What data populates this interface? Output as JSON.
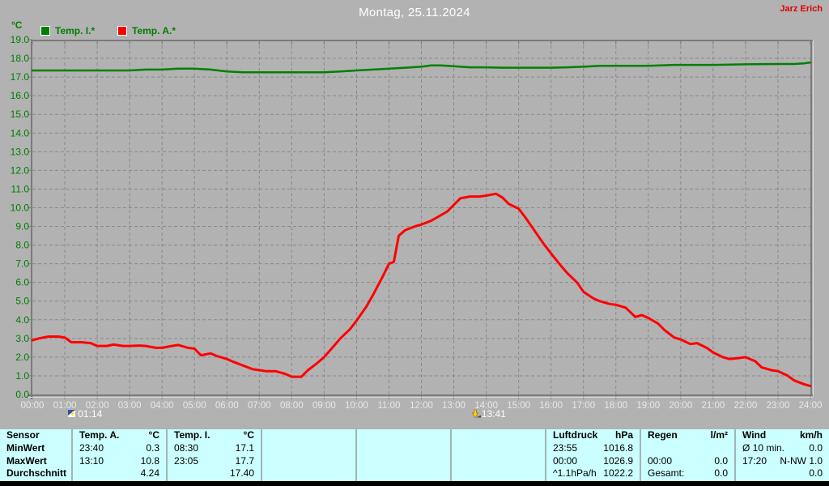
{
  "header": {
    "title": "Montag, 25.11.2024",
    "author": "Jarz Erich"
  },
  "chart": {
    "unit_label": "°C",
    "legend": [
      {
        "label": "Temp. I.*",
        "color": "#008000"
      },
      {
        "label": "Temp. A.*",
        "color": "#ff0000"
      }
    ],
    "markers": [
      {
        "time": "01:14",
        "hour": 1.23
      },
      {
        "time": "13:41",
        "hour": 13.68
      }
    ]
  },
  "chart_data": {
    "type": "line",
    "title": "Montag, 25.11.2024",
    "xlabel": "",
    "ylabel": "°C",
    "ylim": [
      0,
      19
    ],
    "y_tick_step": 1,
    "xlim_hours": [
      0,
      24
    ],
    "grid": true,
    "legend_position": "top-left",
    "x_ticks": [
      "00:00",
      "01:00",
      "02:00",
      "03:00",
      "04:00",
      "05:00",
      "06:00",
      "07:00",
      "08:00",
      "09:00",
      "10:00",
      "11:00",
      "12:00",
      "13:00",
      "14:00",
      "15:00",
      "16:00",
      "17:00",
      "18:00",
      "19:00",
      "20:00",
      "21:00",
      "22:00",
      "23:00",
      "24:00"
    ],
    "series": [
      {
        "name": "Temp. I.*",
        "color": "#008000",
        "width": 2.5,
        "points": [
          [
            0,
            17.35
          ],
          [
            1,
            17.35
          ],
          [
            2,
            17.35
          ],
          [
            3,
            17.35
          ],
          [
            3.5,
            17.4
          ],
          [
            4,
            17.4
          ],
          [
            4.5,
            17.45
          ],
          [
            5,
            17.45
          ],
          [
            5.5,
            17.4
          ],
          [
            6,
            17.3
          ],
          [
            6.5,
            17.25
          ],
          [
            7,
            17.25
          ],
          [
            8,
            17.25
          ],
          [
            9,
            17.25
          ],
          [
            9.5,
            17.3
          ],
          [
            10,
            17.35
          ],
          [
            10.5,
            17.4
          ],
          [
            11,
            17.45
          ],
          [
            11.5,
            17.5
          ],
          [
            12,
            17.55
          ],
          [
            12.3,
            17.62
          ],
          [
            12.6,
            17.62
          ],
          [
            13,
            17.58
          ],
          [
            13.5,
            17.52
          ],
          [
            14,
            17.52
          ],
          [
            14.5,
            17.5
          ],
          [
            15,
            17.5
          ],
          [
            16,
            17.5
          ],
          [
            16.5,
            17.52
          ],
          [
            17,
            17.55
          ],
          [
            17.5,
            17.6
          ],
          [
            18,
            17.6
          ],
          [
            19,
            17.6
          ],
          [
            19.8,
            17.65
          ],
          [
            20,
            17.65
          ],
          [
            21,
            17.65
          ],
          [
            22,
            17.68
          ],
          [
            23,
            17.7
          ],
          [
            23.5,
            17.7
          ],
          [
            23.8,
            17.73
          ],
          [
            24,
            17.78
          ]
        ]
      },
      {
        "name": "Temp. A.*",
        "color": "#ff0000",
        "width": 3,
        "points": [
          [
            0,
            2.9
          ],
          [
            0.2,
            3.0
          ],
          [
            0.5,
            3.1
          ],
          [
            0.8,
            3.1
          ],
          [
            1,
            3.05
          ],
          [
            1.2,
            2.8
          ],
          [
            1.5,
            2.8
          ],
          [
            1.8,
            2.75
          ],
          [
            2,
            2.6
          ],
          [
            2.3,
            2.6
          ],
          [
            2.5,
            2.67
          ],
          [
            2.8,
            2.6
          ],
          [
            3,
            2.6
          ],
          [
            3.3,
            2.62
          ],
          [
            3.5,
            2.6
          ],
          [
            3.8,
            2.5
          ],
          [
            4,
            2.5
          ],
          [
            4.3,
            2.6
          ],
          [
            4.5,
            2.65
          ],
          [
            4.8,
            2.5
          ],
          [
            5,
            2.45
          ],
          [
            5.2,
            2.1
          ],
          [
            5.5,
            2.2
          ],
          [
            5.7,
            2.05
          ],
          [
            6,
            1.9
          ],
          [
            6.2,
            1.75
          ],
          [
            6.5,
            1.55
          ],
          [
            6.8,
            1.35
          ],
          [
            7,
            1.3
          ],
          [
            7.2,
            1.25
          ],
          [
            7.5,
            1.25
          ],
          [
            7.8,
            1.1
          ],
          [
            8,
            0.95
          ],
          [
            8.3,
            0.95
          ],
          [
            8.5,
            1.3
          ],
          [
            8.8,
            1.7
          ],
          [
            9,
            2.0
          ],
          [
            9.3,
            2.6
          ],
          [
            9.5,
            3.0
          ],
          [
            9.8,
            3.5
          ],
          [
            10,
            3.95
          ],
          [
            10.3,
            4.7
          ],
          [
            10.5,
            5.3
          ],
          [
            10.8,
            6.3
          ],
          [
            11,
            7.0
          ],
          [
            11.15,
            7.1
          ],
          [
            11.3,
            8.5
          ],
          [
            11.5,
            8.8
          ],
          [
            11.8,
            9.0
          ],
          [
            12,
            9.1
          ],
          [
            12.3,
            9.3
          ],
          [
            12.5,
            9.5
          ],
          [
            12.8,
            9.8
          ],
          [
            13,
            10.15
          ],
          [
            13.2,
            10.5
          ],
          [
            13.5,
            10.6
          ],
          [
            13.8,
            10.6
          ],
          [
            14,
            10.65
          ],
          [
            14.3,
            10.75
          ],
          [
            14.5,
            10.55
          ],
          [
            14.7,
            10.2
          ],
          [
            15,
            9.95
          ],
          [
            15.2,
            9.5
          ],
          [
            15.5,
            8.75
          ],
          [
            15.8,
            8.0
          ],
          [
            16,
            7.55
          ],
          [
            16.3,
            6.9
          ],
          [
            16.5,
            6.5
          ],
          [
            16.8,
            6.0
          ],
          [
            17,
            5.5
          ],
          [
            17.3,
            5.15
          ],
          [
            17.5,
            5.0
          ],
          [
            17.8,
            4.85
          ],
          [
            18,
            4.8
          ],
          [
            18.3,
            4.65
          ],
          [
            18.6,
            4.15
          ],
          [
            18.8,
            4.25
          ],
          [
            19,
            4.1
          ],
          [
            19.3,
            3.8
          ],
          [
            19.5,
            3.45
          ],
          [
            19.8,
            3.05
          ],
          [
            20,
            2.95
          ],
          [
            20.3,
            2.7
          ],
          [
            20.5,
            2.75
          ],
          [
            20.8,
            2.5
          ],
          [
            21,
            2.25
          ],
          [
            21.3,
            2.0
          ],
          [
            21.5,
            1.9
          ],
          [
            21.8,
            1.95
          ],
          [
            22,
            2.0
          ],
          [
            22.3,
            1.78
          ],
          [
            22.5,
            1.45
          ],
          [
            22.8,
            1.3
          ],
          [
            23,
            1.25
          ],
          [
            23.3,
            1.0
          ],
          [
            23.5,
            0.75
          ],
          [
            23.8,
            0.55
          ],
          [
            24,
            0.45
          ]
        ]
      }
    ]
  },
  "footer_table": {
    "row_labels": [
      "Sensor",
      "MinWert",
      "MaxWert",
      "Durchschnitt"
    ],
    "groups": [
      {
        "name": "temp-a",
        "header": [
          "Temp. A.",
          "°C"
        ],
        "rows": [
          [
            "23:40",
            "0.3"
          ],
          [
            "13:10",
            "10.8"
          ],
          [
            "",
            "4.24"
          ]
        ]
      },
      {
        "name": "temp-i",
        "header": [
          "Temp. I.",
          "°C"
        ],
        "rows": [
          [
            "08:30",
            "17.1"
          ],
          [
            "23:05",
            "17.7"
          ],
          [
            "",
            "17.40"
          ]
        ]
      },
      {
        "name": "empty-1",
        "header": [
          "",
          ""
        ],
        "rows": [
          [
            "",
            ""
          ],
          [
            "",
            ""
          ],
          [
            "",
            ""
          ]
        ]
      },
      {
        "name": "empty-2",
        "header": [
          "",
          ""
        ],
        "rows": [
          [
            "",
            ""
          ],
          [
            "",
            ""
          ],
          [
            "",
            ""
          ]
        ]
      },
      {
        "name": "empty-3",
        "header": [
          "",
          ""
        ],
        "rows": [
          [
            "",
            ""
          ],
          [
            "",
            ""
          ],
          [
            "",
            ""
          ]
        ]
      },
      {
        "name": "luftdruck",
        "header": [
          "Luftdruck",
          "hPa"
        ],
        "rows": [
          [
            "23:55",
            "1016.8"
          ],
          [
            "00:00",
            "1026.9"
          ],
          [
            "^1.1hPa/h",
            "1022.2"
          ]
        ]
      },
      {
        "name": "regen",
        "header": [
          "Regen",
          "l/m²"
        ],
        "rows": [
          [
            "",
            ""
          ],
          [
            "00:00",
            "0.0"
          ],
          [
            "Gesamt:",
            "0.0"
          ]
        ]
      },
      {
        "name": "wind",
        "header": [
          "Wind",
          "km/h"
        ],
        "rows": [
          [
            "Ø 10 min.",
            "0.0"
          ],
          [
            "17:20",
            "N-NW 1.0"
          ],
          [
            "",
            "0.0"
          ]
        ]
      }
    ]
  },
  "colors": {
    "bg": "#b2b2b2",
    "grid": "#898989",
    "axis": "#7b7b7b",
    "axisLight": "#d8d8d8",
    "labelGreen": "#007d00",
    "xlabel": "#e8e8e8",
    "title": "#ffffff",
    "author": "#e00000",
    "tableBg": "#ccffff",
    "tableDivider": "#9fb6b6",
    "strip": "#000000",
    "markerText": "#ffffff",
    "markerYellow": "#ffd800"
  }
}
